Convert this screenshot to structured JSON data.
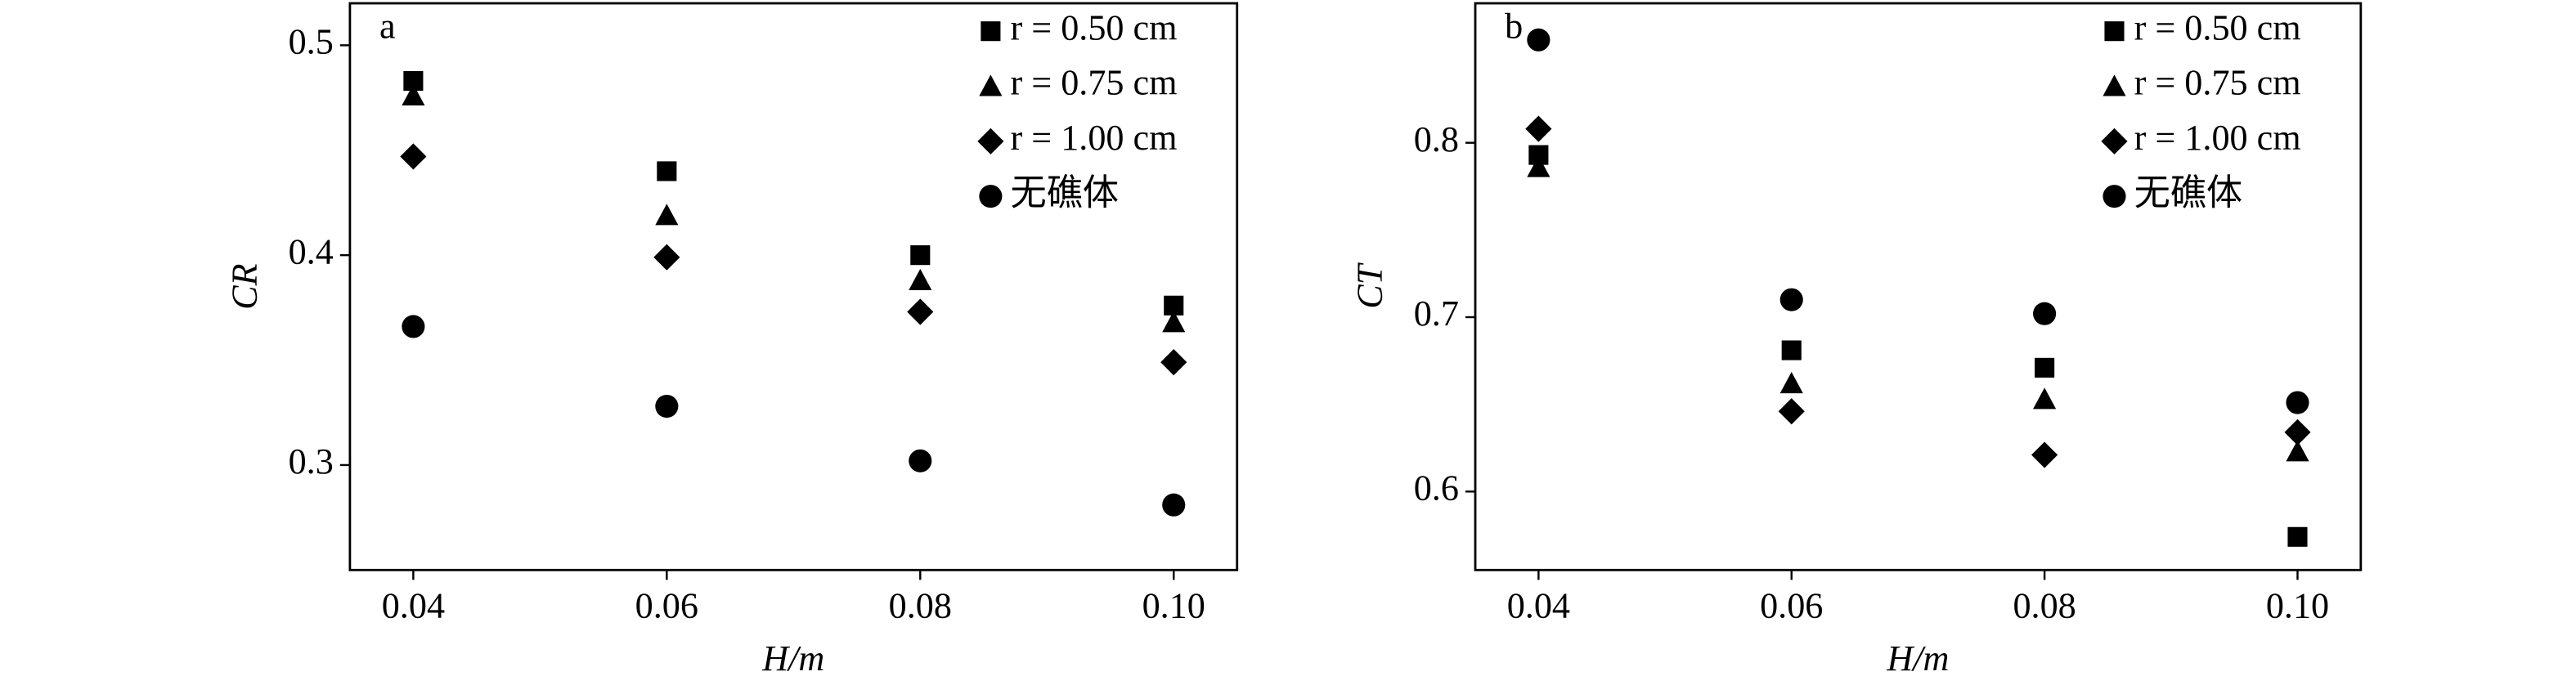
{
  "chart_data": [
    {
      "type": "scatter",
      "panel": "a",
      "xlabel": "H/m",
      "ylabel": "CR",
      "x": [
        0.04,
        0.06,
        0.08,
        0.1
      ],
      "xlim": [
        0.035,
        0.105
      ],
      "xticks": [
        0.04,
        0.06,
        0.08,
        {
          "value": 0.1,
          "label": "0.10"
        }
      ],
      "ylim": [
        0.25,
        0.52
      ],
      "yticks": [
        0.3,
        0.4,
        0.5
      ],
      "legend": "upper right",
      "series": [
        {
          "name": "r = 0.50 cm",
          "marker": "square",
          "color": "#000000",
          "values": [
            0.483,
            0.44,
            0.4,
            0.376
          ]
        },
        {
          "name": "r = 0.75 cm",
          "marker": "triangle",
          "color": "#000000",
          "values": [
            0.476,
            0.419,
            0.388,
            0.368
          ]
        },
        {
          "name": "r = 1.00 cm",
          "marker": "diamond",
          "color": "#000000",
          "values": [
            0.447,
            0.399,
            0.373,
            0.349
          ]
        },
        {
          "name": "无礁体",
          "marker": "circle",
          "color": "#000000",
          "values": [
            0.366,
            0.328,
            0.302,
            0.281
          ]
        }
      ]
    },
    {
      "type": "scatter",
      "panel": "b",
      "xlabel": "H/m",
      "ylabel": "CT",
      "x": [
        0.04,
        0.06,
        0.08,
        0.1
      ],
      "xlim": [
        0.035,
        0.105
      ],
      "xticks": [
        0.04,
        0.06,
        0.08,
        {
          "value": 0.1,
          "label": "0.10"
        }
      ],
      "ylim": [
        0.555,
        0.88
      ],
      "yticks": [
        0.6,
        0.7,
        0.8
      ],
      "legend": "upper right",
      "series": [
        {
          "name": "r = 0.50 cm",
          "marker": "square",
          "color": "#000000",
          "values": [
            0.793,
            0.681,
            0.671,
            0.574
          ]
        },
        {
          "name": "r = 0.75 cm",
          "marker": "triangle",
          "color": "#000000",
          "values": [
            0.786,
            0.662,
            0.653,
            0.623
          ]
        },
        {
          "name": "r = 1.00 cm",
          "marker": "diamond",
          "color": "#000000",
          "values": [
            0.808,
            0.646,
            0.621,
            0.634
          ]
        },
        {
          "name": "无礁体",
          "marker": "circle",
          "color": "#000000",
          "values": [
            0.859,
            0.71,
            0.702,
            0.651
          ]
        }
      ]
    }
  ]
}
